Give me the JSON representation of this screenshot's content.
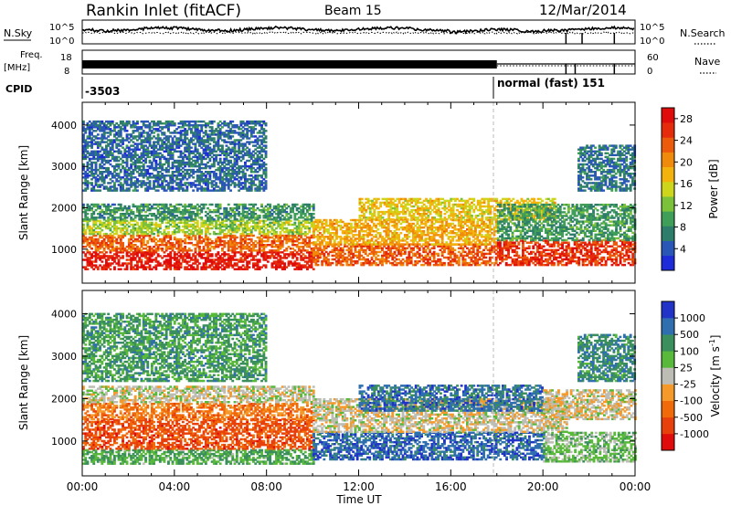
{
  "header": {
    "title": "Rankin Inlet (fitACF)",
    "beam": "Beam 15",
    "date": "12/Mar/2014"
  },
  "strips": {
    "nsky_label": "N.Sky",
    "nsearch_label": "N.Search",
    "nsky_ticks": [
      "10^5",
      "10^0"
    ],
    "nsearch_ticks": [
      "10^5",
      "10^0"
    ],
    "freq_label": "Freq.",
    "freq_unit": "[MHz]",
    "freq_ticks": [
      "18",
      "8"
    ],
    "nave_label": "Nave",
    "nave_ticks": [
      "60",
      "0"
    ],
    "cpid_label": "CPID",
    "cpid_left": "-3503",
    "cpid_right": "normal (fast)  151"
  },
  "chart_data": [
    {
      "type": "heatmap",
      "name": "power",
      "ylabel": "Slant Range [km]",
      "xlabel": "Time UT",
      "x_ticks": [
        "00:00",
        "04:00",
        "08:00",
        "12:00",
        "16:00",
        "20:00",
        "00:00"
      ],
      "xlim_hours": [
        0,
        24
      ],
      "y_ticks": [
        1000,
        2000,
        3000,
        4000
      ],
      "ylim": [
        180,
        4550
      ],
      "colorbar": {
        "label": "Power [dB]",
        "ticks": [
          4,
          8,
          12,
          16,
          20,
          24,
          28
        ],
        "range": [
          0,
          30
        ],
        "colors": [
          "#1d2bd8",
          "#2a56b8",
          "#2e7d6a",
          "#3f9e58",
          "#7cc13a",
          "#cdd61a",
          "#f3b20c",
          "#f08a0a",
          "#ec5a0c",
          "#e52b0b",
          "#e00b0b"
        ]
      },
      "bands": [
        {
          "t0": 0,
          "t1": 10,
          "r0": 500,
          "r1": 950,
          "level": 0.92
        },
        {
          "t0": 0,
          "t1": 10,
          "r0": 950,
          "r1": 1350,
          "level": 0.75
        },
        {
          "t0": 0,
          "t1": 10,
          "r0": 1350,
          "r1": 1700,
          "level": 0.45
        },
        {
          "t0": 0,
          "t1": 10,
          "r0": 1700,
          "r1": 2100,
          "level": 0.28
        },
        {
          "t0": 10,
          "t1": 18,
          "r0": 600,
          "r1": 1100,
          "level": 0.78
        },
        {
          "t0": 10,
          "t1": 18,
          "r0": 1100,
          "r1": 1700,
          "level": 0.62
        },
        {
          "t0": 12,
          "t1": 20.5,
          "r0": 1700,
          "r1": 2200,
          "level": 0.55
        },
        {
          "t0": 18,
          "t1": 24,
          "r0": 600,
          "r1": 1200,
          "level": 0.85
        },
        {
          "t0": 18,
          "t1": 24,
          "r0": 1200,
          "r1": 2100,
          "level": 0.3
        },
        {
          "t0": 21.5,
          "t1": 24,
          "r0": 2400,
          "r1": 3500,
          "level": 0.2
        },
        {
          "t0": 0,
          "t1": 8,
          "r0": 2400,
          "r1": 4100,
          "level": 0.18
        }
      ]
    },
    {
      "type": "heatmap",
      "name": "velocity",
      "ylabel": "Slant Range [km]",
      "xlabel": "Time UT",
      "x_ticks": [
        "00:00",
        "04:00",
        "08:00",
        "12:00",
        "16:00",
        "20:00",
        "00:00"
      ],
      "xlim_hours": [
        0,
        24
      ],
      "y_ticks": [
        1000,
        2000,
        3000,
        4000
      ],
      "ylim": [
        180,
        4550
      ],
      "colorbar": {
        "label": "Velocity [m s^-1]",
        "ticks": [
          "1000",
          "500",
          "100",
          "25",
          "-25",
          "-100",
          "-500",
          "-1000"
        ],
        "colors": [
          "#e00b0b",
          "#e8400c",
          "#f06a0a",
          "#f59a2a",
          "#bdbdb5",
          "#58b93a",
          "#3b8f5c",
          "#2f6fb0",
          "#2233c8"
        ]
      },
      "bands": [
        {
          "t0": 0,
          "t1": 10,
          "r0": 450,
          "r1": 800,
          "level": 0.66
        },
        {
          "t0": 0,
          "t1": 10,
          "r0": 800,
          "r1": 1500,
          "level": 0.2
        },
        {
          "t0": 0,
          "t1": 10,
          "r0": 1500,
          "r1": 1900,
          "level": 0.3
        },
        {
          "t0": 0,
          "t1": 10,
          "r0": 1900,
          "r1": 2300,
          "level": 0.5
        },
        {
          "t0": 10,
          "t1": 20,
          "r0": 550,
          "r1": 1200,
          "level": 0.85
        },
        {
          "t0": 10,
          "t1": 21,
          "r0": 1200,
          "r1": 2000,
          "level": 0.48
        },
        {
          "t0": 12,
          "t1": 20,
          "r0": 1700,
          "r1": 2300,
          "level": 0.82
        },
        {
          "t0": 20,
          "t1": 24,
          "r0": 500,
          "r1": 1200,
          "level": 0.6
        },
        {
          "t0": 20,
          "t1": 24,
          "r0": 1500,
          "r1": 2200,
          "level": 0.48
        },
        {
          "t0": 21.5,
          "t1": 24,
          "r0": 2400,
          "r1": 3500,
          "level": 0.75
        },
        {
          "t0": 0,
          "t1": 8,
          "r0": 2400,
          "r1": 4000,
          "level": 0.7
        }
      ]
    }
  ]
}
